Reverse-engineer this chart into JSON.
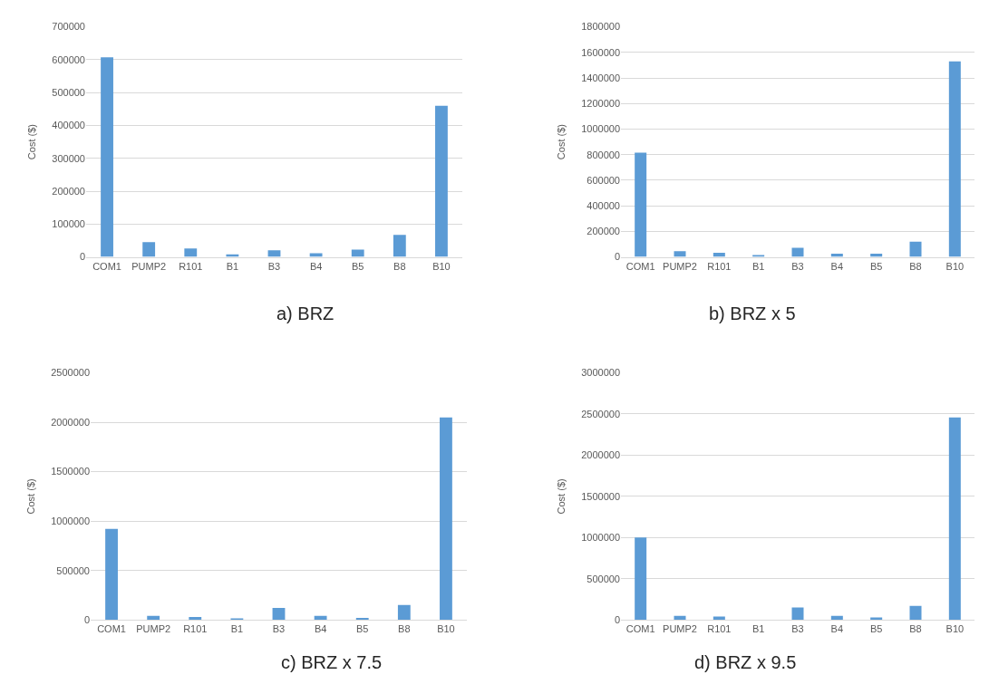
{
  "chart_data": [
    {
      "type": "bar",
      "title": "a) BRZ",
      "ylabel": "Cost ($)",
      "categories": [
        "COM1",
        "PUMP2",
        "R101",
        "B1",
        "B3",
        "B4",
        "B5",
        "B8",
        "B10"
      ],
      "values": [
        607000,
        45000,
        26000,
        8000,
        20000,
        11000,
        22000,
        67000,
        460000
      ],
      "color": "#5b9bd5",
      "ylim": [
        0,
        700000
      ],
      "yticks": [
        0,
        100000,
        200000,
        300000,
        400000,
        500000,
        600000,
        700000
      ],
      "grid": "y"
    },
    {
      "type": "bar",
      "title": "b) BRZ x 5",
      "ylabel": "Cost ($)",
      "categories": [
        "COM1",
        "PUMP2",
        "R101",
        "B1",
        "B3",
        "B4",
        "B5",
        "B8",
        "B10"
      ],
      "values": [
        815000,
        45000,
        33000,
        8000,
        72000,
        25000,
        25000,
        120000,
        1530000
      ],
      "color": "#5b9bd5",
      "ylim": [
        0,
        1800000
      ],
      "yticks": [
        0,
        200000,
        400000,
        600000,
        800000,
        1000000,
        1200000,
        1400000,
        1600000,
        1800000
      ],
      "grid": "y"
    },
    {
      "type": "bar",
      "title": "c) BRZ x 7.5",
      "ylabel": "Cost ($)",
      "categories": [
        "COM1",
        "PUMP2",
        "R101",
        "B1",
        "B3",
        "B4",
        "B5",
        "B8",
        "B10"
      ],
      "values": [
        920000,
        40000,
        30000,
        10000,
        120000,
        40000,
        20000,
        150000,
        2050000
      ],
      "color": "#5b9bd5",
      "ylim": [
        0,
        2500000
      ],
      "yticks": [
        0,
        500000,
        1000000,
        1500000,
        2000000,
        2500000
      ],
      "grid": "y"
    },
    {
      "type": "bar",
      "title": "d) BRZ x 9.5",
      "ylabel": "Cost ($)",
      "categories": [
        "COM1",
        "PUMP2",
        "R101",
        "B1",
        "B3",
        "B4",
        "B5",
        "B8",
        "B10"
      ],
      "values": [
        1000000,
        50000,
        40000,
        0,
        150000,
        50000,
        30000,
        170000,
        2460000
      ],
      "color": "#5b9bd5",
      "ylim": [
        0,
        3000000
      ],
      "yticks": [
        0,
        500000,
        1000000,
        1500000,
        2000000,
        2500000,
        3000000
      ],
      "grid": "y"
    }
  ]
}
